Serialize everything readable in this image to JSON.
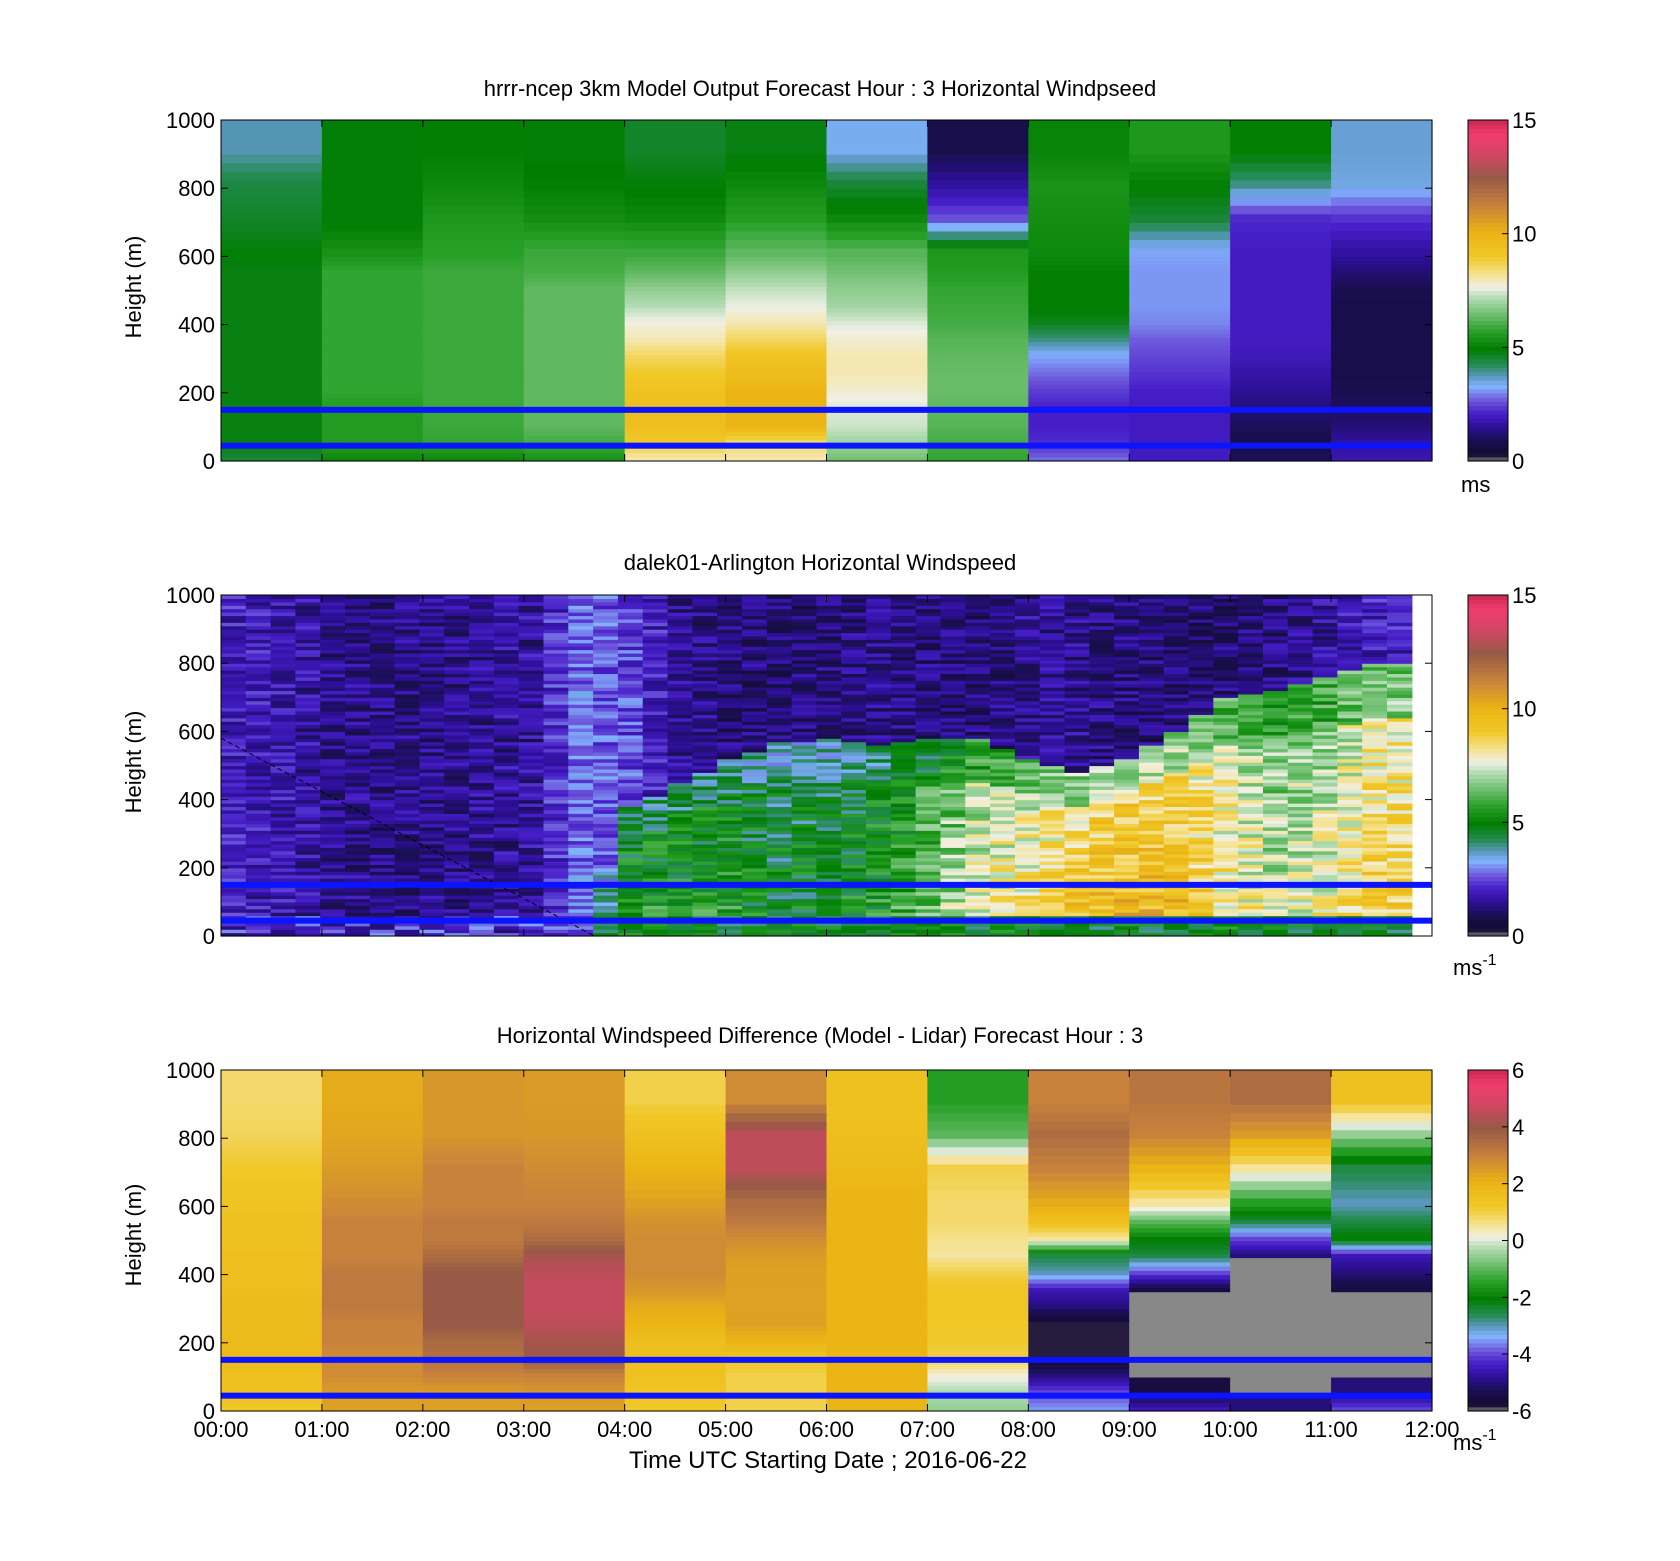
{
  "chart_data": [
    {
      "type": "heatmap",
      "title": "hrrr-ncep 3km Model Output   Forecast Hour : 3 Horizontal Windpseed",
      "ylabel": "Height (m)",
      "xlabel": "",
      "ylim": [
        0,
        1000
      ],
      "yticks": [
        "0",
        "200",
        "400",
        "600",
        "800",
        "1000"
      ],
      "colorbar": {
        "min": 0,
        "max": 15,
        "ticks": [
          "0",
          "5",
          "10",
          "15"
        ],
        "unit": "ms"
      },
      "x": [
        "00:00",
        "01:00",
        "02:00",
        "03:00",
        "04:00",
        "05:00",
        "06:00",
        "07:00",
        "08:00",
        "09:00",
        "10:00",
        "11:00"
      ],
      "levels": [
        0,
        50,
        100,
        150,
        200,
        250,
        300,
        350,
        400,
        450,
        500,
        550,
        600,
        700,
        800,
        900,
        1000
      ],
      "values": [
        [
          4.5,
          4.8,
          4.8,
          4.8,
          4.8,
          4.8,
          4.8,
          4.8,
          4.8,
          4.8,
          4.8,
          4.8,
          4.9,
          4.6,
          4.4,
          3.8
        ],
        [
          5.2,
          5.6,
          5.6,
          5.6,
          5.8,
          5.8,
          5.8,
          5.8,
          5.8,
          5.8,
          5.8,
          5.8,
          5.4,
          4.9,
          4.9,
          4.9
        ],
        [
          5.2,
          5.8,
          5.9,
          5.9,
          5.9,
          5.9,
          5.9,
          5.9,
          5.9,
          5.9,
          5.9,
          5.9,
          5.7,
          5.5,
          5.2,
          5.0
        ],
        [
          5.4,
          6.0,
          6.3,
          6.3,
          6.3,
          6.3,
          6.3,
          6.3,
          6.3,
          6.3,
          6.3,
          6.0,
          5.9,
          5.3,
          5.0,
          4.9
        ],
        [
          8.0,
          9.0,
          9.5,
          9.5,
          9.3,
          9.0,
          8.6,
          8.0,
          7.7,
          7.2,
          6.8,
          6.3,
          5.9,
          5.2,
          4.9,
          4.6
        ],
        [
          8.0,
          8.5,
          10.0,
          10.0,
          10.0,
          9.6,
          9.2,
          8.6,
          8.0,
          7.6,
          7.3,
          6.8,
          6.3,
          5.6,
          5.2,
          4.8
        ],
        [
          6.5,
          7.0,
          7.4,
          7.5,
          7.8,
          8.0,
          8.0,
          7.8,
          7.5,
          7.0,
          6.8,
          6.5,
          6.2,
          5.2,
          4.5,
          3.4
        ],
        [
          5.8,
          6.0,
          6.2,
          6.3,
          6.4,
          6.4,
          6.3,
          6.2,
          6.0,
          5.9,
          5.8,
          5.6,
          5.5,
          2.6,
          1.6,
          0.8
        ],
        [
          2.8,
          2.2,
          2.1,
          2.1,
          2.4,
          2.8,
          3.2,
          4.0,
          4.7,
          5.0,
          5.0,
          5.0,
          5.2,
          5.3,
          5.4,
          5.1
        ],
        [
          2.0,
          2.0,
          2.0,
          2.0,
          2.1,
          2.3,
          2.5,
          2.7,
          3.0,
          3.1,
          3.1,
          3.1,
          3.2,
          4.5,
          5.0,
          5.5
        ],
        [
          1.0,
          0.8,
          1.0,
          1.2,
          1.5,
          1.7,
          1.9,
          2.0,
          2.0,
          2.0,
          2.0,
          2.0,
          2.0,
          2.2,
          4.0,
          5.0
        ],
        [
          1.8,
          1.6,
          1.2,
          1.0,
          0.9,
          0.8,
          0.8,
          0.8,
          0.8,
          0.8,
          0.9,
          1.2,
          1.6,
          2.3,
          3.5,
          3.6
        ]
      ],
      "horizontal_lines_m": [
        150,
        45
      ]
    },
    {
      "type": "heatmap",
      "title": "dalek01-Arlington  Horizontal Windspeed",
      "ylabel": "Height (m)",
      "xlabel": "",
      "ylim": [
        0,
        1000
      ],
      "yticks": [
        "0",
        "200",
        "400",
        "600",
        "800",
        "1000"
      ],
      "colorbar": {
        "min": 0,
        "max": 15,
        "ticks": [
          "0",
          "5",
          "10",
          "15"
        ],
        "unit": "ms",
        "unit_sup": "-1"
      },
      "description_hours": [
        0,
        0.5,
        1,
        1.5,
        2,
        2.5,
        3,
        3.5,
        4,
        4.5,
        5,
        5.5,
        6,
        6.5,
        7,
        7.5,
        8,
        8.5,
        9,
        9.5,
        10,
        10.5,
        11,
        11.5
      ],
      "profile_low_speed": [
        2.2,
        2.0,
        1.9,
        1.8,
        1.6,
        1.7,
        1.8,
        2.2,
        5.5,
        5.5,
        5.5,
        5.0,
        5.0,
        5.5,
        6.5,
        8.0,
        8.5,
        9.5,
        10.0,
        9.8,
        8.5,
        7.5,
        8.0,
        9.0
      ],
      "jet_top_height_m": [
        0,
        0,
        0,
        0,
        0,
        0,
        0,
        0,
        380,
        450,
        520,
        570,
        580,
        560,
        580,
        580,
        520,
        480,
        520,
        600,
        700,
        720,
        760,
        800
      ],
      "upper_speed": [
        2.0,
        1.8,
        1.5,
        1.4,
        1.4,
        1.5,
        1.6,
        2.8,
        2.5,
        1.5,
        1.3,
        1.2,
        1.3,
        1.4,
        1.3,
        1.2,
        1.5,
        1.5,
        1.3,
        1.2,
        1.2,
        1.3,
        1.6,
        2.0
      ],
      "horizontal_lines_m": [
        150,
        45
      ]
    },
    {
      "type": "heatmap",
      "title": "Horizontal Windspeed Difference (Model - Lidar) Forecast Hour : 3",
      "ylabel": "Height (m)",
      "xlabel": "Time UTC  Starting Date ; 2016-06-22",
      "ylim": [
        0,
        1000
      ],
      "yticks": [
        "0",
        "200",
        "400",
        "600",
        "800",
        "1000"
      ],
      "colorbar": {
        "min": -6,
        "max": 6,
        "ticks": [
          "-6",
          "-4",
          "-2",
          "0",
          "2",
          "4",
          "6"
        ],
        "unit": "ms",
        "unit_sup": "-1"
      },
      "x": [
        "00:00",
        "01:00",
        "02:00",
        "03:00",
        "04:00",
        "05:00",
        "06:00",
        "07:00",
        "08:00",
        "09:00",
        "10:00",
        "11:00"
      ],
      "xticks": [
        "00:00",
        "01:00",
        "02:00",
        "03:00",
        "04:00",
        "05:00",
        "06:00",
        "07:00",
        "08:00",
        "09:00",
        "10:00",
        "11:00",
        "12:00"
      ],
      "levels": [
        0,
        50,
        100,
        150,
        200,
        250,
        300,
        350,
        400,
        450,
        500,
        550,
        600,
        700,
        800,
        900,
        1000
      ],
      "values": [
        [
          1.2,
          1.5,
          1.5,
          1.8,
          1.8,
          1.8,
          1.8,
          1.6,
          1.6,
          1.6,
          1.5,
          1.5,
          1.4,
          1.2,
          0.9,
          0.8
        ],
        [
          2.4,
          2.5,
          2.8,
          2.8,
          3.0,
          3.0,
          3.2,
          3.2,
          3.2,
          3.0,
          3.0,
          3.0,
          2.8,
          2.5,
          2.3,
          2.2
        ],
        [
          2.4,
          2.5,
          3.0,
          3.4,
          3.6,
          4.0,
          4.0,
          4.0,
          4.0,
          3.5,
          3.2,
          3.2,
          3.0,
          3.0,
          2.6,
          2.6
        ],
        [
          2.4,
          2.6,
          3.0,
          4.0,
          4.2,
          4.5,
          4.6,
          4.6,
          4.5,
          4.2,
          3.5,
          3.2,
          3.0,
          2.8,
          2.6,
          2.5
        ],
        [
          1.2,
          1.3,
          1.5,
          1.6,
          1.6,
          2.0,
          2.2,
          2.6,
          2.8,
          2.8,
          2.8,
          2.7,
          2.4,
          2.0,
          1.5,
          1.0
        ],
        [
          1.0,
          1.0,
          1.0,
          1.3,
          2.0,
          2.4,
          2.4,
          2.4,
          2.4,
          2.5,
          2.8,
          3.2,
          3.5,
          4.5,
          4.5,
          2.8
        ],
        [
          2.0,
          2.0,
          2.0,
          2.0,
          2.0,
          2.0,
          2.0,
          2.0,
          2.0,
          2.0,
          2.0,
          2.0,
          2.0,
          1.8,
          1.6,
          1.5
        ],
        [
          -0.5,
          -0.3,
          0.2,
          1.0,
          1.2,
          1.2,
          1.3,
          1.3,
          1.0,
          0.5,
          0.6,
          0.8,
          0.8,
          1.0,
          -1.0,
          -1.5
        ],
        [
          -3.5,
          -4.0,
          -5.0,
          -5.8,
          -5.8,
          -5.8,
          -5.0,
          -4.5,
          -3.0,
          -2.5,
          0.5,
          1.5,
          2.2,
          3.0,
          3.5,
          3.0
        ],
        [
          -4.5,
          -5.5,
          -99,
          -99,
          -99,
          -99,
          -99,
          -5.5,
          -4.0,
          -2.5,
          -2.0,
          -1.0,
          0.5,
          2.0,
          3.0,
          3.3
        ],
        [
          -5.0,
          -99,
          -99,
          -99,
          -99,
          -99,
          -99,
          -99,
          -99,
          -5.0,
          -4.0,
          -2.5,
          -1.5,
          0.5,
          2.5,
          3.5
        ],
        [
          -4.0,
          -5.0,
          -99,
          -99,
          -99,
          -99,
          -99,
          -5.5,
          -5.0,
          -4.5,
          -2.0,
          -2.5,
          -3.0,
          -2.5,
          -0.5,
          1.5
        ]
      ],
      "missing_value": -99,
      "horizontal_lines_m": [
        150,
        45
      ]
    }
  ],
  "panels": [
    {
      "title": "hrrr-ncep 3km Model Output   Forecast Hour : 3 Horizontal Windpseed",
      "ylabel": "Height (m)",
      "cb_unit": "ms",
      "cb_sup": ""
    },
    {
      "title": "dalek01-Arlington  Horizontal Windspeed",
      "ylabel": "Height (m)",
      "cb_unit": "ms",
      "cb_sup": "-1"
    },
    {
      "title": "Horizontal Windspeed Difference (Model - Lidar) Forecast Hour : 3",
      "ylabel": "Height (m)",
      "cb_unit": "ms",
      "cb_sup": "-1"
    }
  ],
  "xlabel": "Time UTC  Starting Date ; 2016-06-22",
  "xticks": [
    "00:00",
    "01:00",
    "02:00",
    "03:00",
    "04:00",
    "05:00",
    "06:00",
    "07:00",
    "08:00",
    "09:00",
    "10:00",
    "11:00",
    "12:00"
  ],
  "yticks": [
    "0",
    "200",
    "400",
    "600",
    "800",
    "1000"
  ],
  "colors": {
    "line_blue": "#0a14ff",
    "missing_gray": "#888888"
  }
}
